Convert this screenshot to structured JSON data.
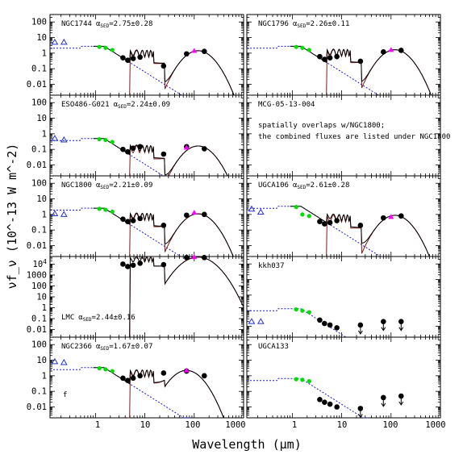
{
  "chart_data": {
    "type": "scatter",
    "xlabel": "Wavelength (μm)",
    "ylabel": "νf_ν (10^-13 W m^-2)",
    "x_scale": "log",
    "y_scale": "log",
    "xlim": [
      0.12,
      1000
    ],
    "x_tick_labels": [
      "1",
      "10",
      "100",
      "1000"
    ],
    "colors": {
      "model": "#000000",
      "stellar": "#1a1acc",
      "dust": "#7a1a1a",
      "uv": "#2233cc",
      "near_ir": "#00dd00",
      "far_ir_model": "#ff00ff",
      "observed": "#000000"
    },
    "panels": [
      {
        "name": "NGC1744",
        "label": "NGC1744",
        "alpha": "2.75±0.28",
        "ylim": [
          0.002,
          300
        ],
        "y_tick_labels": [
          "0.01",
          "0.1",
          "1",
          "10",
          "100"
        ],
        "uv": [
          {
            "x": 0.15,
            "y": 5.0
          },
          {
            "x": 0.23,
            "y": 5.0
          }
        ],
        "green": [
          {
            "x": 1.2,
            "y": 2.5
          },
          {
            "x": 1.6,
            "y": 2.2
          },
          {
            "x": 2.2,
            "y": 1.6
          }
        ],
        "black": [
          {
            "x": 3.6,
            "y": 0.5
          },
          {
            "x": 4.5,
            "y": 0.35
          },
          {
            "x": 5.8,
            "y": 0.45
          },
          {
            "x": 8.0,
            "y": 0.55
          },
          {
            "x": 24,
            "y": 0.15
          },
          {
            "x": 70,
            "y": 0.9
          },
          {
            "x": 160,
            "y": 1.3
          }
        ],
        "magenta": [
          {
            "x": 100,
            "y": 1.4
          }
        ]
      },
      {
        "name": "NGC1796",
        "label": "NGC1796",
        "alpha": "2.26±0.11",
        "ylim": [
          0.002,
          300
        ],
        "y_tick_labels": [
          "0.01",
          "0.1",
          "1",
          "10",
          "100"
        ],
        "uv": [],
        "green": [
          {
            "x": 1.2,
            "y": 2.5
          },
          {
            "x": 1.6,
            "y": 2.2
          },
          {
            "x": 2.2,
            "y": 1.6
          }
        ],
        "black": [
          {
            "x": 3.6,
            "y": 0.6
          },
          {
            "x": 4.5,
            "y": 0.4
          },
          {
            "x": 5.8,
            "y": 0.5
          },
          {
            "x": 8.0,
            "y": 0.6
          },
          {
            "x": 24,
            "y": 0.3
          },
          {
            "x": 70,
            "y": 1.2
          },
          {
            "x": 160,
            "y": 1.5
          }
        ],
        "magenta": [
          {
            "x": 100,
            "y": 1.6
          }
        ]
      },
      {
        "name": "ESO486-G021",
        "label": "ESO486-G021",
        "alpha": "2.24±0.09",
        "ylim": [
          0.002,
          300
        ],
        "y_tick_labels": [
          "0.01",
          "0.1",
          "1",
          "10",
          "100"
        ],
        "uv": [
          {
            "x": 0.15,
            "y": 0.5
          },
          {
            "x": 0.23,
            "y": 0.4
          }
        ],
        "green": [
          {
            "x": 1.2,
            "y": 0.45
          },
          {
            "x": 1.6,
            "y": 0.4
          },
          {
            "x": 2.2,
            "y": 0.3
          }
        ],
        "black": [
          {
            "x": 3.6,
            "y": 0.1
          },
          {
            "x": 4.5,
            "y": 0.07
          },
          {
            "x": 5.8,
            "y": 0.12
          },
          {
            "x": 8.0,
            "y": 0.15
          },
          {
            "x": 24,
            "y": 0.05
          },
          {
            "x": 70,
            "y": 0.15
          },
          {
            "x": 160,
            "y": 0.11
          }
        ],
        "magenta": [
          {
            "x": 70,
            "y": 0.13
          }
        ]
      },
      {
        "name": "MCG-05-13-004",
        "label": "MCG-05-13-004",
        "note": [
          "spatially overlaps w/NGC1800;",
          "the combined fluxes are listed under NGC1800"
        ],
        "ylim": [
          0.002,
          300
        ],
        "uv": [],
        "green": [],
        "black": [],
        "magenta": []
      },
      {
        "name": "NGC1800",
        "label": "NGC1800",
        "alpha": "2.21±0.09",
        "ylim": [
          0.002,
          300
        ],
        "y_tick_labels": [
          "0.01",
          "0.1",
          "1",
          "10",
          "100"
        ],
        "uv": [
          {
            "x": 0.15,
            "y": 1.1
          },
          {
            "x": 0.23,
            "y": 1.0
          }
        ],
        "green": [
          {
            "x": 1.2,
            "y": 2.3
          },
          {
            "x": 1.6,
            "y": 2.0
          },
          {
            "x": 2.2,
            "y": 1.5
          }
        ],
        "black": [
          {
            "x": 3.6,
            "y": 0.5
          },
          {
            "x": 4.5,
            "y": 0.35
          },
          {
            "x": 5.8,
            "y": 0.4
          },
          {
            "x": 8.0,
            "y": 0.55
          },
          {
            "x": 24,
            "y": 0.2
          },
          {
            "x": 70,
            "y": 0.9
          },
          {
            "x": 160,
            "y": 1.0
          }
        ],
        "magenta": [
          {
            "x": 100,
            "y": 1.3
          }
        ]
      },
      {
        "name": "UGCA106",
        "label": "UGCA106",
        "alpha": "2.61±0.28",
        "ylim": [
          0.002,
          300
        ],
        "y_tick_labels": [
          "0.01",
          "0.1",
          "1",
          "10",
          "100"
        ],
        "uv": [
          {
            "x": 0.15,
            "y": 2.2
          },
          {
            "x": 0.23,
            "y": 1.4
          }
        ],
        "green": [
          {
            "x": 1.2,
            "y": 3.0
          },
          {
            "x": 1.6,
            "y": 1.0
          },
          {
            "x": 2.2,
            "y": 0.8
          }
        ],
        "black": [
          {
            "x": 3.6,
            "y": 0.35
          },
          {
            "x": 4.5,
            "y": 0.25
          },
          {
            "x": 5.8,
            "y": 0.3
          },
          {
            "x": 8.0,
            "y": 0.4
          },
          {
            "x": 24,
            "y": 0.2
          },
          {
            "x": 70,
            "y": 0.6
          },
          {
            "x": 160,
            "y": 0.8
          }
        ],
        "magenta": [
          {
            "x": 100,
            "y": 0.7
          }
        ]
      },
      {
        "name": "LMC",
        "label": "LMC",
        "alpha": "2.44±0.16",
        "ylim": [
          0.002,
          50000
        ],
        "y_tick_labels": [
          "0.01",
          "0.1",
          "1",
          "10",
          "100",
          "1000",
          "10^4"
        ],
        "uv": [],
        "green": [],
        "black": [
          {
            "x": 3.6,
            "y": 10000
          },
          {
            "x": 4.5,
            "y": 6000
          },
          {
            "x": 5.8,
            "y": 8000
          },
          {
            "x": 8.0,
            "y": 12000
          },
          {
            "x": 24,
            "y": 9000
          },
          {
            "x": 70,
            "y": 40000
          },
          {
            "x": 160,
            "y": 40000
          }
        ],
        "magenta": [
          {
            "x": 100,
            "y": 45000
          }
        ]
      },
      {
        "name": "kkh037",
        "label": "kkh037",
        "ylim": [
          0.002,
          300
        ],
        "y_tick_labels": [
          "0.01",
          "0.1",
          "1",
          "10",
          "100"
        ],
        "uv": [
          {
            "x": 0.15,
            "y": 0.02
          },
          {
            "x": 0.23,
            "y": 0.02
          }
        ],
        "green": [
          {
            "x": 1.2,
            "y": 0.12
          },
          {
            "x": 1.6,
            "y": 0.1
          },
          {
            "x": 2.2,
            "y": 0.08
          }
        ],
        "black": [
          {
            "x": 3.6,
            "y": 0.025
          },
          {
            "x": 4.5,
            "y": 0.015
          },
          {
            "x": 5.8,
            "y": 0.012
          },
          {
            "x": 8.0,
            "y": 0.008
          }
        ],
        "upper_limits": [
          {
            "x": 24,
            "y": 0.012
          },
          {
            "x": 70,
            "y": 0.02
          },
          {
            "x": 160,
            "y": 0.02
          }
        ]
      },
      {
        "name": "NGC2366",
        "label": "NGC2366",
        "alpha": "1.67±0.07",
        "ylim": [
          0.002,
          300
        ],
        "y_tick_labels": [
          "0.01",
          "0.1",
          "1",
          "10",
          "100"
        ],
        "uv": [
          {
            "x": 0.15,
            "y": 8.0
          },
          {
            "x": 0.23,
            "y": 7.0
          }
        ],
        "green": [
          {
            "x": 1.2,
            "y": 3.0
          },
          {
            "x": 1.6,
            "y": 2.6
          },
          {
            "x": 2.2,
            "y": 2.0
          }
        ],
        "black": [
          {
            "x": 3.6,
            "y": 0.7
          },
          {
            "x": 4.5,
            "y": 0.5
          },
          {
            "x": 5.8,
            "y": 0.7
          },
          {
            "x": 8.0,
            "y": 1.0
          },
          {
            "x": 24,
            "y": 1.5
          },
          {
            "x": 70,
            "y": 2.0
          },
          {
            "x": 160,
            "y": 1.0
          }
        ],
        "magenta": [
          {
            "x": 70,
            "y": 2.2
          }
        ],
        "corner_label": "f"
      },
      {
        "name": "UGCA133",
        "label": "UGCA133",
        "ylim": [
          0.002,
          300
        ],
        "y_tick_labels": [
          "0.01",
          "0.1",
          "1",
          "10",
          "100"
        ],
        "uv": [],
        "green": [
          {
            "x": 1.2,
            "y": 0.6
          },
          {
            "x": 1.6,
            "y": 0.55
          },
          {
            "x": 2.2,
            "y": 0.45
          }
        ],
        "black": [
          {
            "x": 3.6,
            "y": 0.03
          },
          {
            "x": 4.5,
            "y": 0.02
          },
          {
            "x": 5.8,
            "y": 0.015
          },
          {
            "x": 8.0,
            "y": 0.01
          }
        ],
        "upper_limits": [
          {
            "x": 24,
            "y": 0.008
          },
          {
            "x": 70,
            "y": 0.04
          },
          {
            "x": 160,
            "y": 0.05
          }
        ]
      }
    ]
  }
}
